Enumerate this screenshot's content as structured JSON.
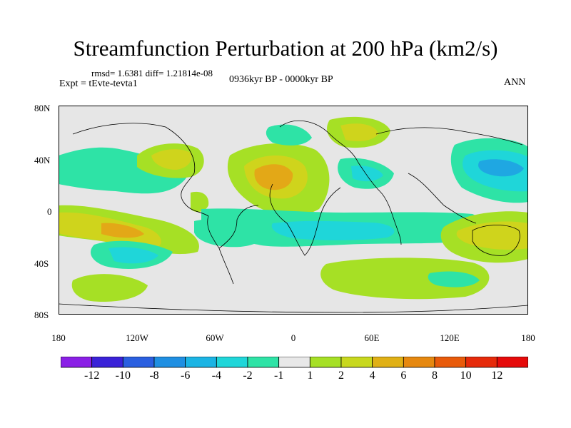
{
  "title": "Streamfunction Perturbation at 200 hPa (km2/s)",
  "stats": "rmsd= 1.6381 diff= 1.21814e-08",
  "experiment": "Expt = tEvte-tevta1",
  "period": "0936kyr BP - 0000kyr BP",
  "season": "ANN",
  "lat_ticks": [
    "80N",
    "40N",
    "0",
    "40S",
    "80S"
  ],
  "lon_ticks": [
    "180",
    "120W",
    "60W",
    "0",
    "60E",
    "120E",
    "180"
  ],
  "colorbar": {
    "labels": [
      "-12",
      "-10",
      "-8",
      "-6",
      "-4",
      "-2",
      "-1",
      "1",
      "2",
      "4",
      "6",
      "8",
      "10",
      "12"
    ],
    "colors": [
      "#8a1fe6",
      "#3a22d8",
      "#2a5fe0",
      "#1f8fe2",
      "#1bb4e4",
      "#1fd6d9",
      "#2ee3a6",
      "#e8e8e8",
      "#a6e025",
      "#c8d81e",
      "#e0b015",
      "#e6880f",
      "#e85a0a",
      "#e62a0a",
      "#e60a0a"
    ]
  },
  "colors": {
    "background_land_ocean": "#e6e6e6",
    "green": "#a6e025",
    "yellow": "#cfd41c",
    "orange": "#e3a817",
    "cyan": "#2ee3a6",
    "teal": "#1fd6d9",
    "blue": "#1fa7e2"
  }
}
